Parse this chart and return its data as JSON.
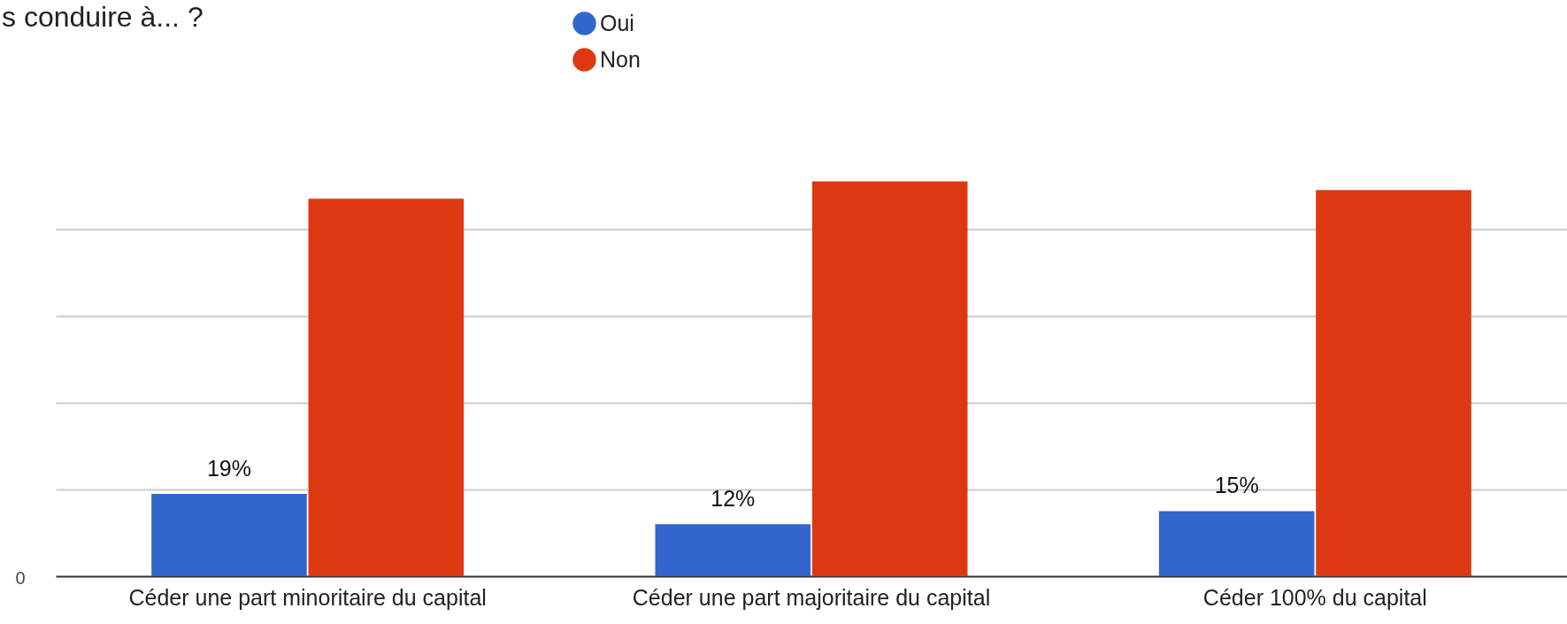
{
  "chart_data": {
    "type": "bar",
    "title": "s conduire à... ?",
    "categories": [
      "Céder une part minoritaire du capital",
      "Céder une part majoritaire du capital",
      "Céder 100% du capital"
    ],
    "series": [
      {
        "name": "Oui",
        "color": "#3366cc",
        "values": [
          19,
          12,
          15
        ],
        "value_labels": [
          "19%",
          "12%",
          "15%"
        ]
      },
      {
        "name": "Non",
        "color": "#dc3912",
        "values": [
          87,
          91,
          89
        ]
      }
    ],
    "yticks": [
      {
        "value": 20,
        "label": null
      },
      {
        "value": 40,
        "label": null
      },
      {
        "value": 60,
        "label": null
      },
      {
        "value": 80,
        "label": null
      }
    ],
    "grid": "y",
    "annotations": [
      "0"
    ],
    "legend": "top"
  }
}
